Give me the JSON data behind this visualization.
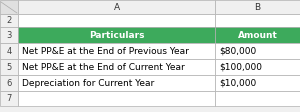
{
  "rows": [
    {
      "label": "Particulars",
      "value": "Amount",
      "is_header": true
    },
    {
      "label": "Net PP&E at the End of Previous Year",
      "value": "$80,000",
      "is_header": false
    },
    {
      "label": "Net PP&E at the End of Current Year",
      "value": "$100,000",
      "is_header": false
    },
    {
      "label": "Depreciation for Current Year",
      "value": "$10,000",
      "is_header": false
    }
  ],
  "header_bg": "#3DAA5C",
  "header_text": "#FFFFFF",
  "row_bg": "#FFFFFF",
  "row_text": "#000000",
  "border_color": "#B0B0B0",
  "col_a_label": "A",
  "col_b_label": "B",
  "row_numbers": [
    "2",
    "3",
    "4",
    "5",
    "6",
    "7"
  ],
  "fig_bg": "#F0F0F0",
  "header_col_bg": "#F0F0F0",
  "corner_bg": "#E0E0E0",
  "col_header_bg": "#F0F0F0"
}
